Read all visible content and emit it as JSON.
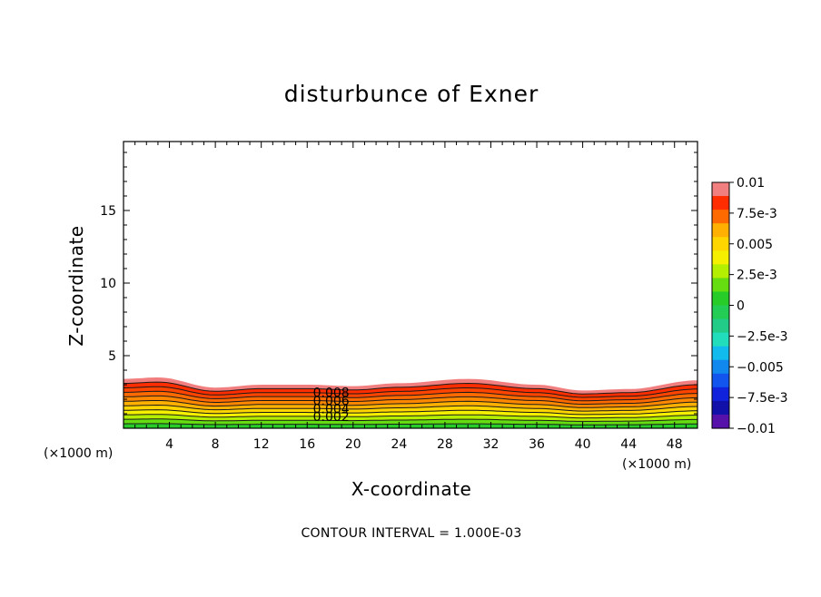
{
  "chart_data": {
    "type": "contour",
    "title": "disturbunce of Exner",
    "xlabel": "X-coordinate",
    "ylabel": "Z-coordinate",
    "x_unit_left": "(×1000 m)",
    "x_unit_right": "(×1000 m)",
    "xlim": [
      0,
      50
    ],
    "ylim": [
      0,
      19.75
    ],
    "xticks": [
      "4",
      "8",
      "12",
      "16",
      "20",
      "24",
      "28",
      "32",
      "36",
      "40",
      "44",
      "48"
    ],
    "yticks": [
      "5",
      "10",
      "15"
    ],
    "contour_interval_text": "CONTOUR INTERVAL = 1.000E-03",
    "contour_labels": [
      "0.008",
      "0.006",
      "0.004",
      "0.002"
    ],
    "colorbar": {
      "labels": [
        "0.01",
        "7.5e-3",
        "0.005",
        "2.5e-3",
        "0",
        "−2.5e-3",
        "−0.005",
        "−7.5e-3",
        "−0.01"
      ],
      "colors_top_to_bottom": [
        "#f27f7f",
        "#ff2d00",
        "#ff6a00",
        "#ffb000",
        "#ffd500",
        "#f4f000",
        "#b4ee00",
        "#66dd11",
        "#28cc28",
        "#22cc55",
        "#22cc88",
        "#22ddbb",
        "#11bbee",
        "#1188ee",
        "#1155ee",
        "#1122dd",
        "#1111aa",
        "#5511aa"
      ]
    },
    "field_surface_height_x_z": [
      [
        0,
        3.4
      ],
      [
        3,
        3.5
      ],
      [
        8,
        2.8
      ],
      [
        12,
        3.0
      ],
      [
        16,
        3.0
      ],
      [
        20,
        2.9
      ],
      [
        24,
        3.1
      ],
      [
        30,
        3.4
      ],
      [
        36,
        3.0
      ],
      [
        40,
        2.6
      ],
      [
        44,
        2.7
      ],
      [
        50,
        3.3
      ]
    ],
    "bands_bottom_to_top": [
      "#28cc28",
      "#66dd11",
      "#b4ee00",
      "#f4f000",
      "#ffd500",
      "#ffb000",
      "#ff8800",
      "#ff6a00",
      "#ff4400",
      "#ff2d00",
      "#f27f7f"
    ]
  }
}
